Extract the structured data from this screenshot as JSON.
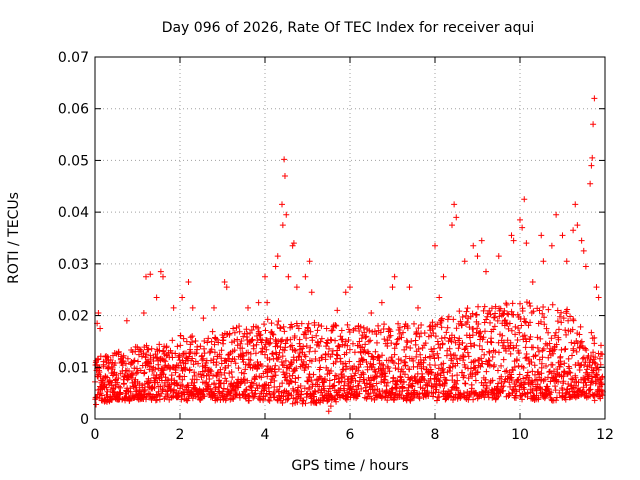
{
  "chart_data": {
    "type": "scatter",
    "title": "Day 096 of 2026, Rate Of TEC Index for receiver aqui",
    "xlabel": "GPS time / hours",
    "ylabel": "ROTI / TECUs",
    "xlim": [
      0,
      12
    ],
    "ylim": [
      0,
      0.07
    ],
    "x_ticks": [
      "0",
      "2",
      "4",
      "6",
      "8",
      "10",
      "12"
    ],
    "y_ticks": [
      "0",
      "0.01",
      "0.02",
      "0.03",
      "0.04",
      "0.05",
      "0.06",
      "0.07"
    ],
    "grid": true,
    "marker": "+",
    "series": [
      {
        "name": "ROTI",
        "color": "#ff0000",
        "points": [
          [
            0.05,
            0.0185
          ],
          [
            0.08,
            0.0205
          ],
          [
            0.12,
            0.0175
          ],
          [
            0.2,
            0.0105
          ],
          [
            0.3,
            0.012
          ],
          [
            0.55,
            0.0125
          ],
          [
            0.75,
            0.019
          ],
          [
            1.15,
            0.0205
          ],
          [
            1.2,
            0.0275
          ],
          [
            1.3,
            0.028
          ],
          [
            1.45,
            0.0235
          ],
          [
            1.55,
            0.0285
          ],
          [
            1.6,
            0.0275
          ],
          [
            1.85,
            0.0215
          ],
          [
            2.05,
            0.0235
          ],
          [
            2.2,
            0.0265
          ],
          [
            2.3,
            0.0215
          ],
          [
            2.55,
            0.0195
          ],
          [
            2.8,
            0.0215
          ],
          [
            3.05,
            0.0265
          ],
          [
            3.1,
            0.0255
          ],
          [
            3.25,
            0.0175
          ],
          [
            3.6,
            0.0215
          ],
          [
            3.85,
            0.0225
          ],
          [
            4.0,
            0.0275
          ],
          [
            4.05,
            0.0225
          ],
          [
            4.25,
            0.0295
          ],
          [
            4.3,
            0.0315
          ],
          [
            4.4,
            0.0415
          ],
          [
            4.42,
            0.0375
          ],
          [
            4.45,
            0.0502
          ],
          [
            4.47,
            0.047
          ],
          [
            4.5,
            0.0395
          ],
          [
            4.55,
            0.0275
          ],
          [
            4.65,
            0.0335
          ],
          [
            4.68,
            0.034
          ],
          [
            4.75,
            0.0255
          ],
          [
            4.95,
            0.0275
          ],
          [
            5.05,
            0.0305
          ],
          [
            5.1,
            0.0245
          ],
          [
            5.45,
            0.0175
          ],
          [
            5.5,
            0.0015
          ],
          [
            5.55,
            0.0025
          ],
          [
            5.7,
            0.021
          ],
          [
            5.9,
            0.0245
          ],
          [
            6.0,
            0.0255
          ],
          [
            6.2,
            0.018
          ],
          [
            6.5,
            0.0205
          ],
          [
            6.75,
            0.0225
          ],
          [
            7.0,
            0.0255
          ],
          [
            7.05,
            0.0275
          ],
          [
            7.4,
            0.0255
          ],
          [
            7.6,
            0.0215
          ],
          [
            7.9,
            0.018
          ],
          [
            8.0,
            0.0335
          ],
          [
            8.1,
            0.0235
          ],
          [
            8.2,
            0.0275
          ],
          [
            8.4,
            0.0375
          ],
          [
            8.45,
            0.0415
          ],
          [
            8.5,
            0.039
          ],
          [
            8.7,
            0.0305
          ],
          [
            8.9,
            0.0335
          ],
          [
            9.0,
            0.0315
          ],
          [
            9.1,
            0.0345
          ],
          [
            9.2,
            0.0285
          ],
          [
            9.5,
            0.0315
          ],
          [
            9.8,
            0.0355
          ],
          [
            9.85,
            0.0345
          ],
          [
            10.0,
            0.0385
          ],
          [
            10.05,
            0.037
          ],
          [
            10.1,
            0.0425
          ],
          [
            10.15,
            0.034
          ],
          [
            10.3,
            0.0265
          ],
          [
            10.5,
            0.0355
          ],
          [
            10.55,
            0.0305
          ],
          [
            10.75,
            0.0335
          ],
          [
            10.85,
            0.0395
          ],
          [
            11.0,
            0.0355
          ],
          [
            11.1,
            0.0305
          ],
          [
            11.25,
            0.0365
          ],
          [
            11.3,
            0.0415
          ],
          [
            11.35,
            0.0375
          ],
          [
            11.45,
            0.0345
          ],
          [
            11.5,
            0.0325
          ],
          [
            11.55,
            0.0295
          ],
          [
            11.65,
            0.0455
          ],
          [
            11.68,
            0.049
          ],
          [
            11.7,
            0.0505
          ],
          [
            11.72,
            0.057
          ],
          [
            11.75,
            0.062
          ],
          [
            11.8,
            0.0255
          ],
          [
            11.85,
            0.0235
          ],
          [
            11.9,
            0.0105
          ]
        ]
      }
    ],
    "dense_band": {
      "note": "bulk of ~thousands of points; baseline and upper envelope per hour",
      "x": [
        0,
        1,
        2,
        3,
        4,
        5,
        6,
        7,
        8,
        9,
        10,
        11,
        12
      ],
      "low": [
        0.003,
        0.004,
        0.004,
        0.004,
        0.004,
        0.003,
        0.004,
        0.004,
        0.004,
        0.004,
        0.004,
        0.004,
        0.004
      ],
      "high": [
        0.012,
        0.014,
        0.016,
        0.017,
        0.019,
        0.019,
        0.018,
        0.018,
        0.019,
        0.022,
        0.023,
        0.022,
        0.014
      ]
    }
  }
}
